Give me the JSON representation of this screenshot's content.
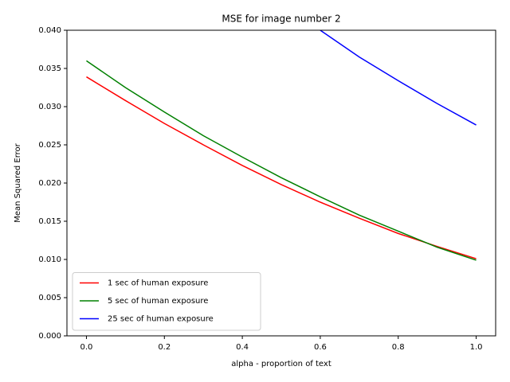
{
  "chart_data": {
    "type": "line",
    "title": "MSE for image number 2",
    "x_label": "alpha - proportion of text",
    "y_label": "Mean Squared Error",
    "x": [
      0.0,
      0.1,
      0.2,
      0.3,
      0.4,
      0.5,
      0.6,
      0.7,
      0.8,
      0.9,
      1.0
    ],
    "series": [
      {
        "name": "1 sec of human exposure",
        "color": "#ff0000",
        "values": [
          0.0339,
          0.0308,
          0.0278,
          0.025,
          0.0223,
          0.0198,
          0.0175,
          0.0154,
          0.0134,
          0.0117,
          0.0101
        ]
      },
      {
        "name": "5 sec of human exposure",
        "color": "#008000",
        "values": [
          0.036,
          0.0325,
          0.0293,
          0.0262,
          0.0234,
          0.0207,
          0.0182,
          0.0158,
          0.0137,
          0.0116,
          0.0099
        ]
      },
      {
        "name": "25 sec of human exposure",
        "color": "#0000ff",
        "values": [
          null,
          null,
          null,
          null,
          null,
          null,
          0.04,
          0.0365,
          0.0334,
          0.0304,
          0.0276
        ]
      }
    ],
    "xlim": [
      -0.05,
      1.05
    ],
    "ylim": [
      0,
      0.04
    ],
    "xticks": [
      {
        "value": 0,
        "label": "0.0"
      },
      0.2,
      0.4,
      0.6,
      0.8,
      {
        "value": 1,
        "label": "1.0"
      }
    ],
    "yticks": [
      {
        "value": 0,
        "label": "0.000"
      },
      0.005,
      {
        "value": 0.01,
        "label": "0.010"
      },
      0.015,
      {
        "value": 0.02,
        "label": "0.020"
      },
      0.025,
      {
        "value": 0.03,
        "label": "0.030"
      },
      0.035,
      {
        "value": 0.04,
        "label": "0.040"
      }
    ],
    "legend": "lower left"
  }
}
